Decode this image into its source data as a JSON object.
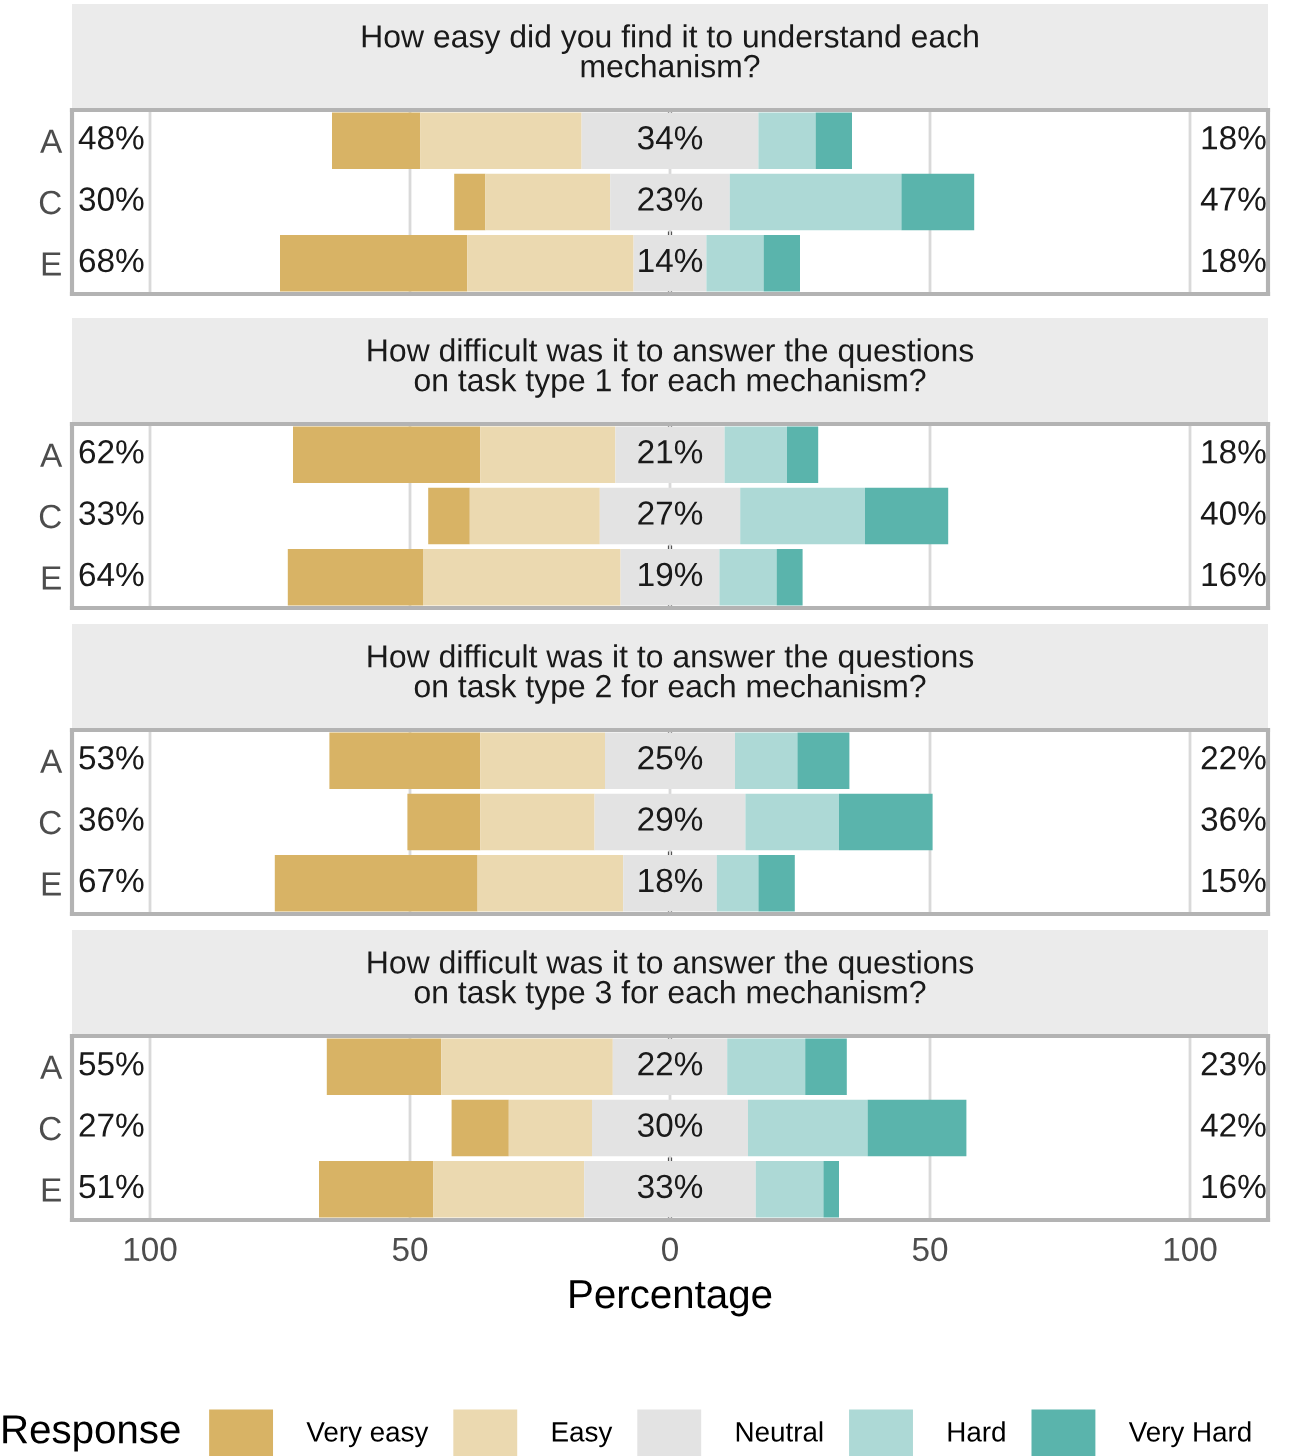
{
  "chart_data": [
    {
      "type": "bar",
      "orientation": "horizontal",
      "title": "How easy did you find it to understand each\nmechanism?",
      "categories": [
        "A",
        "C",
        "E"
      ],
      "legend": "bottom",
      "legend_title": "Response",
      "grid": "x",
      "series": [
        {
          "name": "Very easy",
          "color": "#d8b365",
          "base": [
            -65,
            -41.5,
            -75
          ],
          "values": [
            17,
            6,
            36
          ]
        },
        {
          "name": "Easy",
          "color": "#ebd9b0",
          "base": [
            -48,
            -35.5,
            -39
          ],
          "values": [
            31,
            24,
            32
          ]
        },
        {
          "name": "Neutral",
          "color": "#e3e3e3",
          "base": [
            -17,
            -11.5,
            -7
          ],
          "values": [
            34,
            23,
            14
          ],
          "value_labels": [
            "34%",
            "23%",
            "14%"
          ]
        },
        {
          "name": "Hard",
          "color": "#add9d6",
          "base": [
            17,
            11.5,
            7
          ],
          "values": [
            11,
            33,
            11
          ]
        },
        {
          "name": "Very Hard",
          "color": "#5ab4ac",
          "base": [
            28,
            44.5,
            18
          ],
          "values": [
            7,
            14,
            7
          ]
        }
      ],
      "annotations": [
        "48%",
        "30%",
        "68%",
        "18%",
        "47%",
        "18%"
      ],
      "ref_lines": [
        {
          "axis": "x",
          "value": 0,
          "color": "#000000",
          "line_style": "dashed"
        }
      ],
      "xlim": [
        -115,
        115
      ],
      "xticks": [
        {
          "value": -100,
          "label": null
        },
        {
          "value": -50,
          "label": null
        },
        {
          "value": 0,
          "label": null
        },
        {
          "value": 50,
          "label": null
        },
        {
          "value": 100,
          "label": null
        }
      ],
      "tick_labels": "y"
    },
    {
      "type": "bar",
      "orientation": "horizontal",
      "title": "How difficult was it to answer the questions\non task type 1 for each mechanism?",
      "categories": [
        "A",
        "C",
        "E"
      ],
      "grid": "x",
      "series": [
        {
          "color": "#d8b365",
          "base": [
            -72.5,
            -46.5,
            -73.5
          ],
          "values": [
            36,
            8,
            26
          ]
        },
        {
          "color": "#ebd9b0",
          "base": [
            -36.5,
            -38.5,
            -47.5
          ],
          "values": [
            26,
            25,
            38
          ]
        },
        {
          "color": "#e3e3e3",
          "base": [
            -10.5,
            -13.5,
            -9.5
          ],
          "values": [
            21,
            27,
            19
          ],
          "value_labels": [
            "21%",
            "27%",
            "19%"
          ]
        },
        {
          "color": "#add9d6",
          "base": [
            10.5,
            13.5,
            9.5
          ],
          "values": [
            12,
            24,
            11
          ]
        },
        {
          "color": "#5ab4ac",
          "base": [
            22.5,
            37.5,
            20.5
          ],
          "values": [
            6,
            16,
            5
          ]
        }
      ],
      "annotations": [
        "62%",
        "33%",
        "64%",
        "18%",
        "40%",
        "16%"
      ],
      "ref_lines": [
        {
          "axis": "x",
          "value": 0,
          "color": "#000000",
          "line_style": "dashed"
        }
      ],
      "xlim": [
        -115,
        115
      ],
      "xticks": [
        {
          "value": -100,
          "label": null
        },
        {
          "value": -50,
          "label": null
        },
        {
          "value": 0,
          "label": null
        },
        {
          "value": 50,
          "label": null
        },
        {
          "value": 100,
          "label": null
        }
      ],
      "tick_labels": "y"
    },
    {
      "type": "bar",
      "orientation": "horizontal",
      "title": "How difficult was it to answer the questions\non task type 2 for each mechanism?",
      "categories": [
        "A",
        "C",
        "E"
      ],
      "grid": "x",
      "series": [
        {
          "color": "#d8b365",
          "base": [
            -65.5,
            -50.5,
            -76
          ],
          "values": [
            29,
            14,
            39
          ]
        },
        {
          "color": "#ebd9b0",
          "base": [
            -36.5,
            -36.5,
            -37
          ],
          "values": [
            24,
            22,
            28
          ]
        },
        {
          "color": "#e3e3e3",
          "base": [
            -12.5,
            -14.5,
            -9
          ],
          "values": [
            25,
            29,
            18
          ],
          "value_labels": [
            "25%",
            "29%",
            "18%"
          ]
        },
        {
          "color": "#add9d6",
          "base": [
            12.5,
            14.5,
            9
          ],
          "values": [
            12,
            18,
            8
          ]
        },
        {
          "color": "#5ab4ac",
          "base": [
            24.5,
            32.5,
            17
          ],
          "values": [
            10,
            18,
            7
          ]
        }
      ],
      "annotations": [
        "53%",
        "36%",
        "67%",
        "22%",
        "36%",
        "15%"
      ],
      "ref_lines": [
        {
          "axis": "x",
          "value": 0,
          "color": "#000000",
          "line_style": "dashed"
        }
      ],
      "xlim": [
        -115,
        115
      ],
      "xticks": [
        {
          "value": -100,
          "label": null
        },
        {
          "value": -50,
          "label": null
        },
        {
          "value": 0,
          "label": null
        },
        {
          "value": 50,
          "label": null
        },
        {
          "value": 100,
          "label": null
        }
      ],
      "tick_labels": "y"
    },
    {
      "type": "bar",
      "orientation": "horizontal",
      "title": "How difficult was it to answer the questions\non task type 3 for each mechanism?",
      "categories": [
        "A",
        "C",
        "E"
      ],
      "xlabel": "Percentage",
      "grid": "x",
      "series": [
        {
          "color": "#d8b365",
          "base": [
            -66,
            -42,
            -67.5
          ],
          "values": [
            22,
            11,
            22
          ]
        },
        {
          "color": "#ebd9b0",
          "base": [
            -44,
            -31,
            -45.5
          ],
          "values": [
            33,
            16,
            29
          ]
        },
        {
          "color": "#e3e3e3",
          "base": [
            -11,
            -15,
            -16.5
          ],
          "values": [
            22,
            30,
            33
          ],
          "value_labels": [
            "22%",
            "30%",
            "33%"
          ]
        },
        {
          "color": "#add9d6",
          "base": [
            11,
            15,
            16.5
          ],
          "values": [
            15,
            23,
            13
          ]
        },
        {
          "color": "#5ab4ac",
          "base": [
            26,
            38,
            29.5
          ],
          "values": [
            8,
            19,
            3
          ]
        }
      ],
      "annotations": [
        "55%",
        "27%",
        "51%",
        "23%",
        "42%",
        "16%"
      ],
      "ref_lines": [
        {
          "axis": "x",
          "value": 0,
          "color": "#000000",
          "line_style": "dashed"
        }
      ],
      "xlim": [
        -115,
        115
      ],
      "xticks": [
        {
          "value": -100,
          "label": "100"
        },
        {
          "value": -50,
          "label": "50"
        },
        0,
        50,
        100
      ]
    }
  ]
}
